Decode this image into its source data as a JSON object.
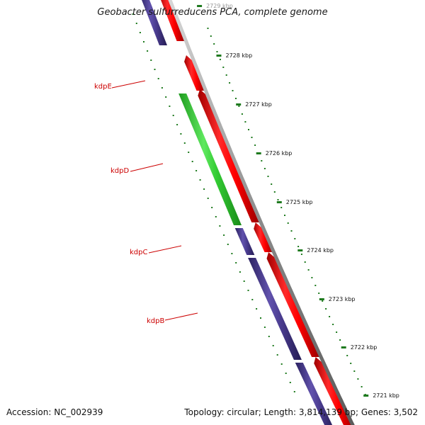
{
  "title": "Geobacter sulfurreducens PCA, complete genome",
  "footer": {
    "accession": "Accession: NC_002939",
    "summary": "Topology: circular; Length: 3,814,139 bp; Genes: 3,502"
  },
  "colors": {
    "forward_cds": "#ff0000",
    "reverse_cds": "#4b3d91",
    "highlight_gene": "#33cc33",
    "backbone": "#808080",
    "ticks": "#1e7a1e",
    "gene_label": "#cc0000"
  },
  "scale": {
    "unit": "kbp",
    "ticks": [
      {
        "label": "2729 kbp"
      },
      {
        "label": "2728 kbp"
      },
      {
        "label": "2727 kbp"
      },
      {
        "label": "2726 kbp"
      },
      {
        "label": "2725 kbp"
      },
      {
        "label": "2724 kbp"
      },
      {
        "label": "2723 kbp"
      },
      {
        "label": "2722 kbp"
      },
      {
        "label": "2721 kbp"
      }
    ]
  },
  "gene_labels": [
    {
      "label": "kdpE"
    },
    {
      "label": "kdpD"
    },
    {
      "label": "kdpC"
    },
    {
      "label": "kdpB"
    }
  ]
}
